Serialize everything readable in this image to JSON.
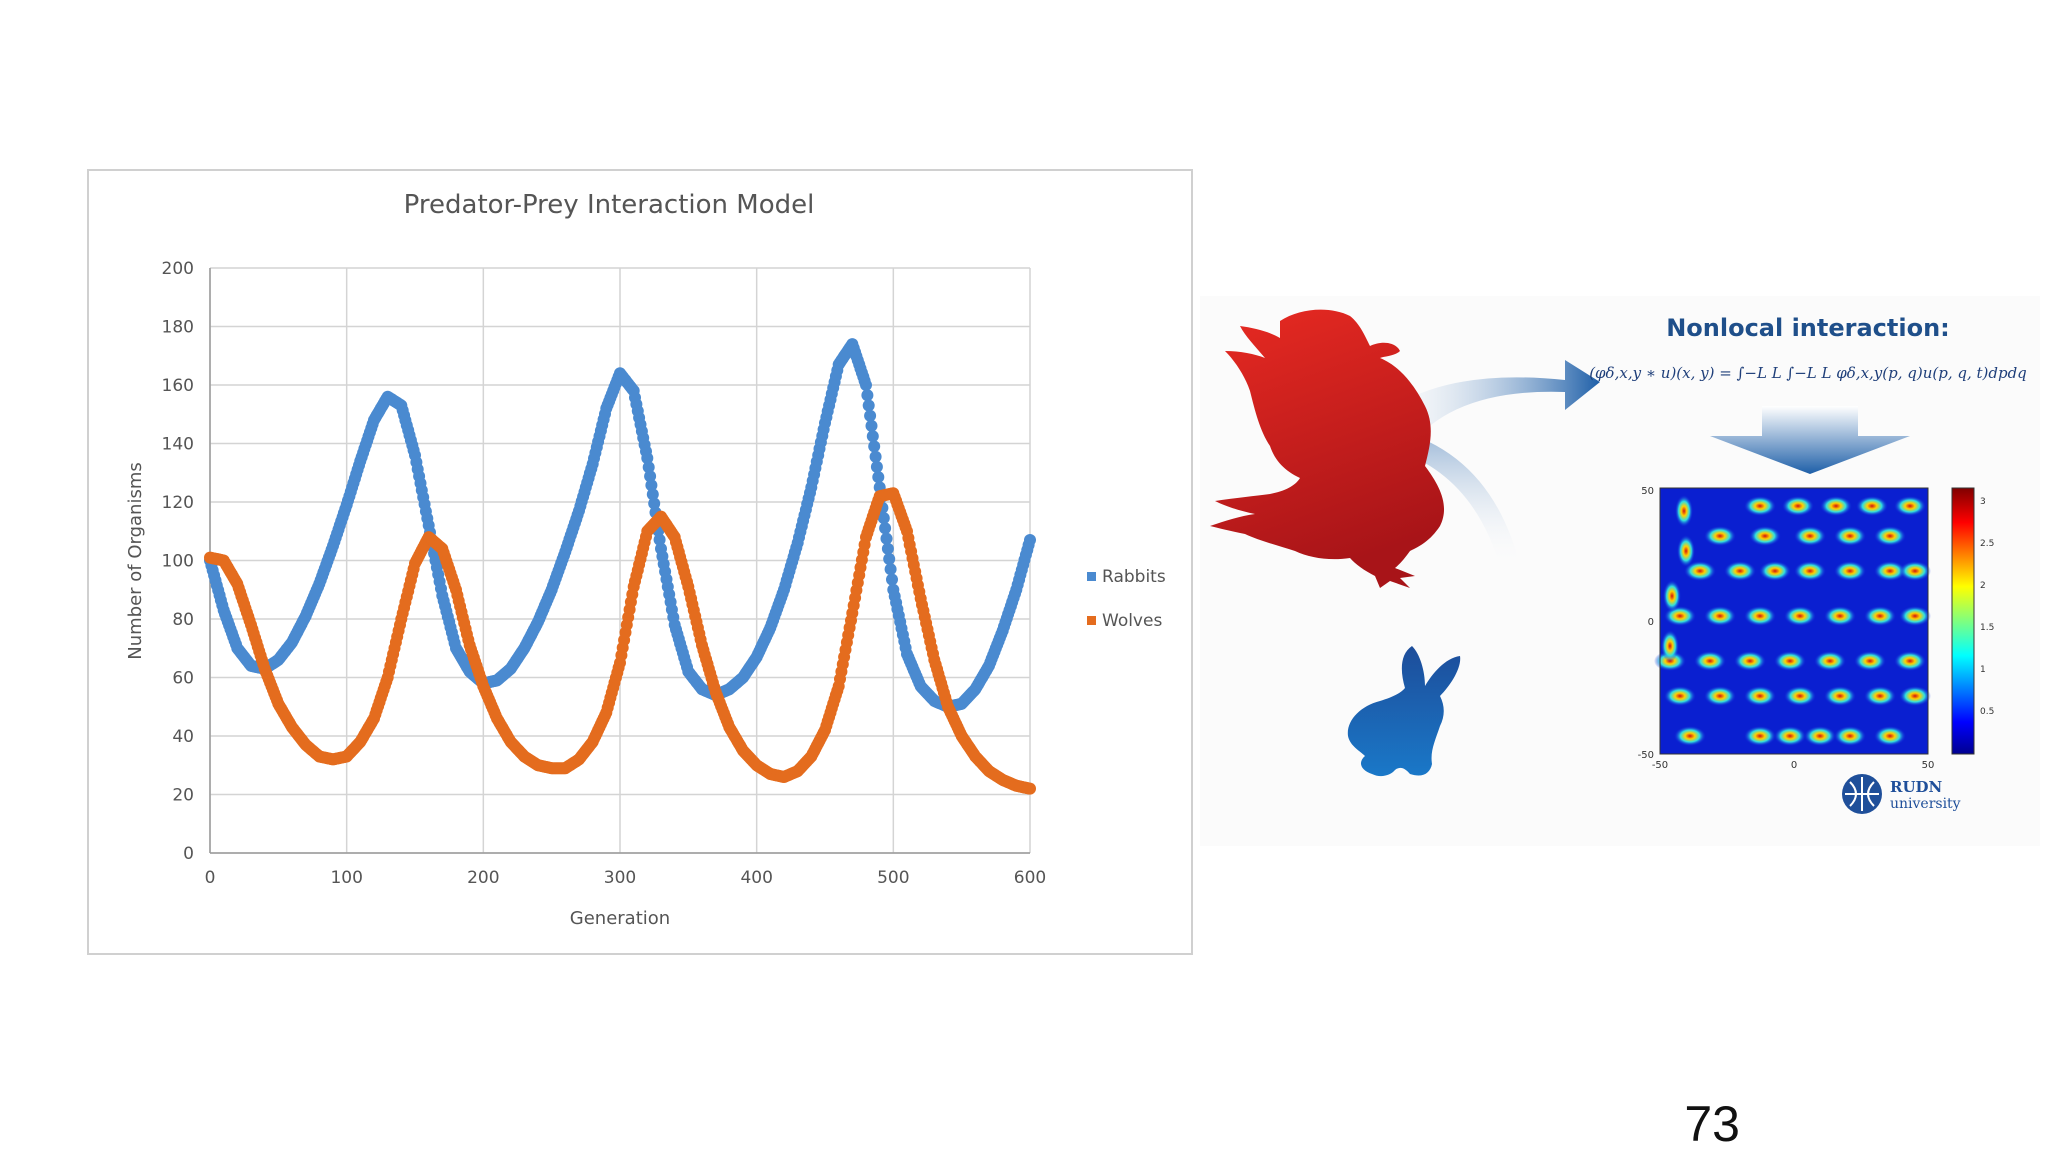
{
  "chart_data": {
    "type": "scatter",
    "title": "Predator-Prey Interaction Model",
    "xlabel": "Generation",
    "ylabel": "Number of Organisms",
    "xlim": [
      0,
      600
    ],
    "ylim": [
      0,
      200
    ],
    "xticks": [
      0,
      100,
      200,
      300,
      400,
      500,
      600
    ],
    "yticks": [
      0,
      20,
      40,
      60,
      80,
      100,
      120,
      140,
      160,
      180,
      200
    ],
    "grid": true,
    "legend_position": "right",
    "series": [
      {
        "name": "Rabbits",
        "color": "#4a8ad0",
        "points": [
          [
            0,
            100
          ],
          [
            10,
            83
          ],
          [
            20,
            70
          ],
          [
            30,
            64
          ],
          [
            40,
            63
          ],
          [
            50,
            66
          ],
          [
            60,
            72
          ],
          [
            70,
            81
          ],
          [
            80,
            92
          ],
          [
            90,
            105
          ],
          [
            100,
            119
          ],
          [
            110,
            134
          ],
          [
            120,
            148
          ],
          [
            130,
            156
          ],
          [
            140,
            153
          ],
          [
            150,
            136
          ],
          [
            160,
            112
          ],
          [
            170,
            88
          ],
          [
            180,
            70
          ],
          [
            190,
            62
          ],
          [
            200,
            58
          ],
          [
            210,
            59
          ],
          [
            220,
            63
          ],
          [
            230,
            70
          ],
          [
            240,
            79
          ],
          [
            250,
            90
          ],
          [
            260,
            103
          ],
          [
            270,
            117
          ],
          [
            280,
            133
          ],
          [
            290,
            152
          ],
          [
            300,
            164
          ],
          [
            310,
            158
          ],
          [
            320,
            135
          ],
          [
            330,
            104
          ],
          [
            340,
            78
          ],
          [
            350,
            62
          ],
          [
            360,
            56
          ],
          [
            370,
            54
          ],
          [
            380,
            56
          ],
          [
            390,
            60
          ],
          [
            400,
            67
          ],
          [
            410,
            77
          ],
          [
            420,
            90
          ],
          [
            430,
            106
          ],
          [
            440,
            125
          ],
          [
            450,
            147
          ],
          [
            460,
            167
          ],
          [
            470,
            174
          ],
          [
            480,
            160
          ],
          [
            490,
            125
          ],
          [
            500,
            90
          ],
          [
            510,
            68
          ],
          [
            520,
            57
          ],
          [
            530,
            52
          ],
          [
            540,
            50
          ],
          [
            550,
            51
          ],
          [
            560,
            56
          ],
          [
            570,
            64
          ],
          [
            580,
            76
          ],
          [
            590,
            90
          ],
          [
            600,
            107
          ]
        ]
      },
      {
        "name": "Wolves",
        "color": "#e46c1e",
        "points": [
          [
            0,
            101
          ],
          [
            10,
            100
          ],
          [
            20,
            92
          ],
          [
            30,
            78
          ],
          [
            40,
            63
          ],
          [
            50,
            51
          ],
          [
            60,
            43
          ],
          [
            70,
            37
          ],
          [
            80,
            33
          ],
          [
            90,
            32
          ],
          [
            100,
            33
          ],
          [
            110,
            38
          ],
          [
            120,
            46
          ],
          [
            130,
            60
          ],
          [
            140,
            80
          ],
          [
            150,
            99
          ],
          [
            160,
            108
          ],
          [
            170,
            104
          ],
          [
            180,
            90
          ],
          [
            190,
            71
          ],
          [
            200,
            57
          ],
          [
            210,
            46
          ],
          [
            220,
            38
          ],
          [
            230,
            33
          ],
          [
            240,
            30
          ],
          [
            250,
            29
          ],
          [
            260,
            29
          ],
          [
            270,
            32
          ],
          [
            280,
            38
          ],
          [
            290,
            48
          ],
          [
            300,
            65
          ],
          [
            310,
            91
          ],
          [
            320,
            110
          ],
          [
            330,
            115
          ],
          [
            340,
            108
          ],
          [
            350,
            91
          ],
          [
            360,
            71
          ],
          [
            370,
            55
          ],
          [
            380,
            43
          ],
          [
            390,
            35
          ],
          [
            400,
            30
          ],
          [
            410,
            27
          ],
          [
            420,
            26
          ],
          [
            430,
            28
          ],
          [
            440,
            33
          ],
          [
            450,
            42
          ],
          [
            460,
            57
          ],
          [
            470,
            82
          ],
          [
            480,
            108
          ],
          [
            490,
            122
          ],
          [
            500,
            123
          ],
          [
            510,
            110
          ],
          [
            520,
            87
          ],
          [
            530,
            66
          ],
          [
            540,
            50
          ],
          [
            550,
            40
          ],
          [
            560,
            33
          ],
          [
            570,
            28
          ],
          [
            580,
            25
          ],
          [
            590,
            23
          ],
          [
            600,
            22
          ]
        ]
      }
    ]
  },
  "illustration": {
    "heading": "Nonlocal interaction:",
    "formula": "(φδ,x,y ∗ u)(x, y) = ∫−L L ∫−L L φδ,x,y(p, q)u(p, q, t)dpdq",
    "heatmap": {
      "colormap": "jet",
      "x_ticks": [
        "-50",
        "0",
        "50"
      ],
      "y_ticks": [
        "50",
        "0",
        "-50"
      ],
      "colorbar_ticks": [
        "3",
        "2.5",
        "2",
        "1.5",
        "1",
        "0.5"
      ]
    },
    "logo_text": [
      "RUDN",
      "university"
    ],
    "predator": "eagle",
    "prey": "rabbit",
    "colors": {
      "predator": "#d62020",
      "prey": "#1565c0",
      "heading": "#1f4f8a"
    }
  },
  "slide": {
    "number": "73"
  }
}
